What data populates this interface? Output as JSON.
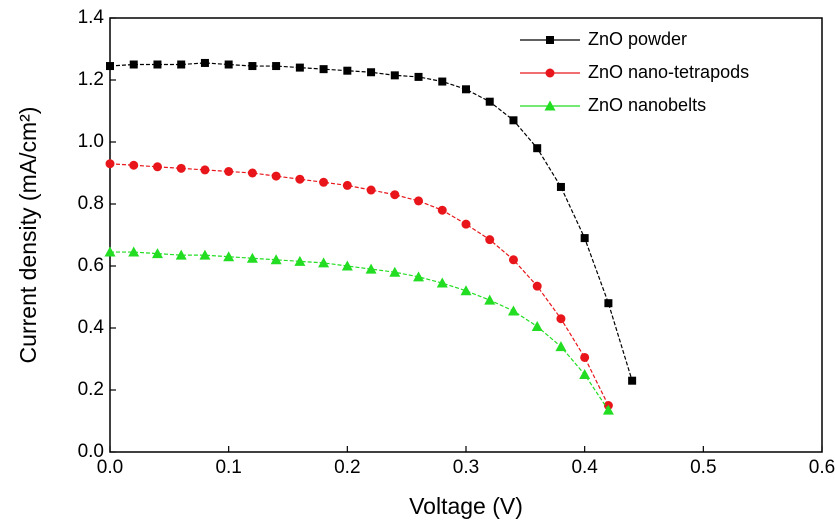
{
  "chart_data": {
    "type": "line",
    "xlabel": "Voltage (V)",
    "ylabel": "Current density (mA/cm²)",
    "xlim": [
      0,
      0.6
    ],
    "ylim": [
      0,
      1.4
    ],
    "xticks": [
      {
        "value": 0,
        "label": "0.0"
      },
      0.1,
      0.2,
      0.3,
      0.4,
      0.5,
      0.6
    ],
    "yticks": [
      {
        "value": 0,
        "label": "0.0"
      },
      0.2,
      0.4,
      0.6,
      0.8,
      {
        "value": 1,
        "label": "1.0"
      },
      1.2,
      1.4
    ],
    "legend": "upper right",
    "series": [
      {
        "name": "ZnO powder",
        "color": "#000000",
        "marker": "square",
        "x": [
          0,
          0.02,
          0.04,
          0.06,
          0.08,
          0.1,
          0.12,
          0.14,
          0.16,
          0.18,
          0.2,
          0.22,
          0.24,
          0.26,
          0.28,
          0.3,
          0.32,
          0.34,
          0.36,
          0.38,
          0.4,
          0.42,
          0.44
        ],
        "values": [
          1.245,
          1.25,
          1.25,
          1.25,
          1.255,
          1.25,
          1.245,
          1.245,
          1.24,
          1.235,
          1.23,
          1.225,
          1.215,
          1.21,
          1.195,
          1.17,
          1.13,
          1.07,
          0.98,
          0.855,
          0.69,
          0.48,
          0.23
        ]
      },
      {
        "name": "ZnO nano-tetrapods",
        "color": "#e8161b",
        "marker": "circle",
        "x": [
          0,
          0.02,
          0.04,
          0.06,
          0.08,
          0.1,
          0.12,
          0.14,
          0.16,
          0.18,
          0.2,
          0.22,
          0.24,
          0.26,
          0.28,
          0.3,
          0.32,
          0.34,
          0.36,
          0.38,
          0.4,
          0.42
        ],
        "values": [
          0.93,
          0.925,
          0.92,
          0.915,
          0.91,
          0.905,
          0.9,
          0.89,
          0.88,
          0.87,
          0.86,
          0.845,
          0.83,
          0.81,
          0.78,
          0.735,
          0.685,
          0.62,
          0.535,
          0.43,
          0.305,
          0.15
        ]
      },
      {
        "name": "ZnO nanobelts",
        "color": "#22dd22",
        "marker": "triangle",
        "x": [
          0,
          0.02,
          0.04,
          0.06,
          0.08,
          0.1,
          0.12,
          0.14,
          0.16,
          0.18,
          0.2,
          0.22,
          0.24,
          0.26,
          0.28,
          0.3,
          0.32,
          0.34,
          0.36,
          0.38,
          0.4,
          0.42
        ],
        "values": [
          0.645,
          0.645,
          0.64,
          0.635,
          0.635,
          0.63,
          0.625,
          0.62,
          0.615,
          0.61,
          0.6,
          0.59,
          0.58,
          0.565,
          0.545,
          0.52,
          0.49,
          0.455,
          0.405,
          0.34,
          0.25,
          0.135
        ]
      }
    ]
  }
}
